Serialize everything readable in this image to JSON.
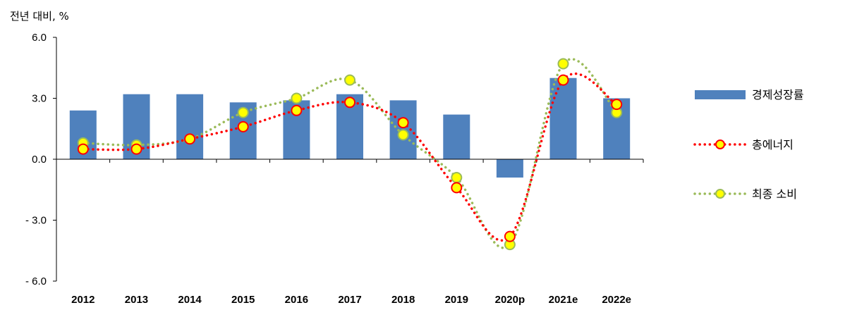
{
  "chart_data": {
    "type": "bar",
    "unit_label": "전년 대비, %",
    "categories": [
      "2012",
      "2013",
      "2014",
      "2015",
      "2016",
      "2017",
      "2018",
      "2019",
      "2020p",
      "2021e",
      "2022e"
    ],
    "ylim": [
      -6.0,
      6.0
    ],
    "yticks": [
      {
        "value": 6.0,
        "label": "6.0"
      },
      {
        "value": 3.0,
        "label": "3.0"
      },
      {
        "value": 0.0,
        "label": "0.0"
      },
      {
        "value": -3.0,
        "label": "- 3.0"
      },
      {
        "value": -6.0,
        "label": "- 6.0"
      }
    ],
    "grid": false,
    "legend_position": "right",
    "series": [
      {
        "name": "경제성장률",
        "kind": "bar",
        "color": "#4f81bd",
        "values": [
          2.4,
          3.2,
          3.2,
          2.8,
          2.9,
          3.2,
          2.9,
          2.2,
          -0.9,
          4.0,
          3.0
        ]
      },
      {
        "name": "총에너지",
        "kind": "line",
        "line_color": "#ff0000",
        "marker_fill": "#ffff00",
        "marker_edge": "#ff0000",
        "values": [
          0.5,
          0.5,
          1.0,
          1.6,
          2.4,
          2.8,
          1.8,
          -1.4,
          -3.8,
          3.9,
          2.7
        ]
      },
      {
        "name": "최종 소비",
        "kind": "line",
        "line_color": "#9bbb59",
        "marker_fill": "#ffff00",
        "marker_edge": "#9bbb59",
        "values": [
          0.8,
          0.7,
          1.0,
          2.3,
          3.0,
          3.9,
          1.2,
          -0.9,
          -4.2,
          4.7,
          2.3
        ]
      }
    ]
  }
}
